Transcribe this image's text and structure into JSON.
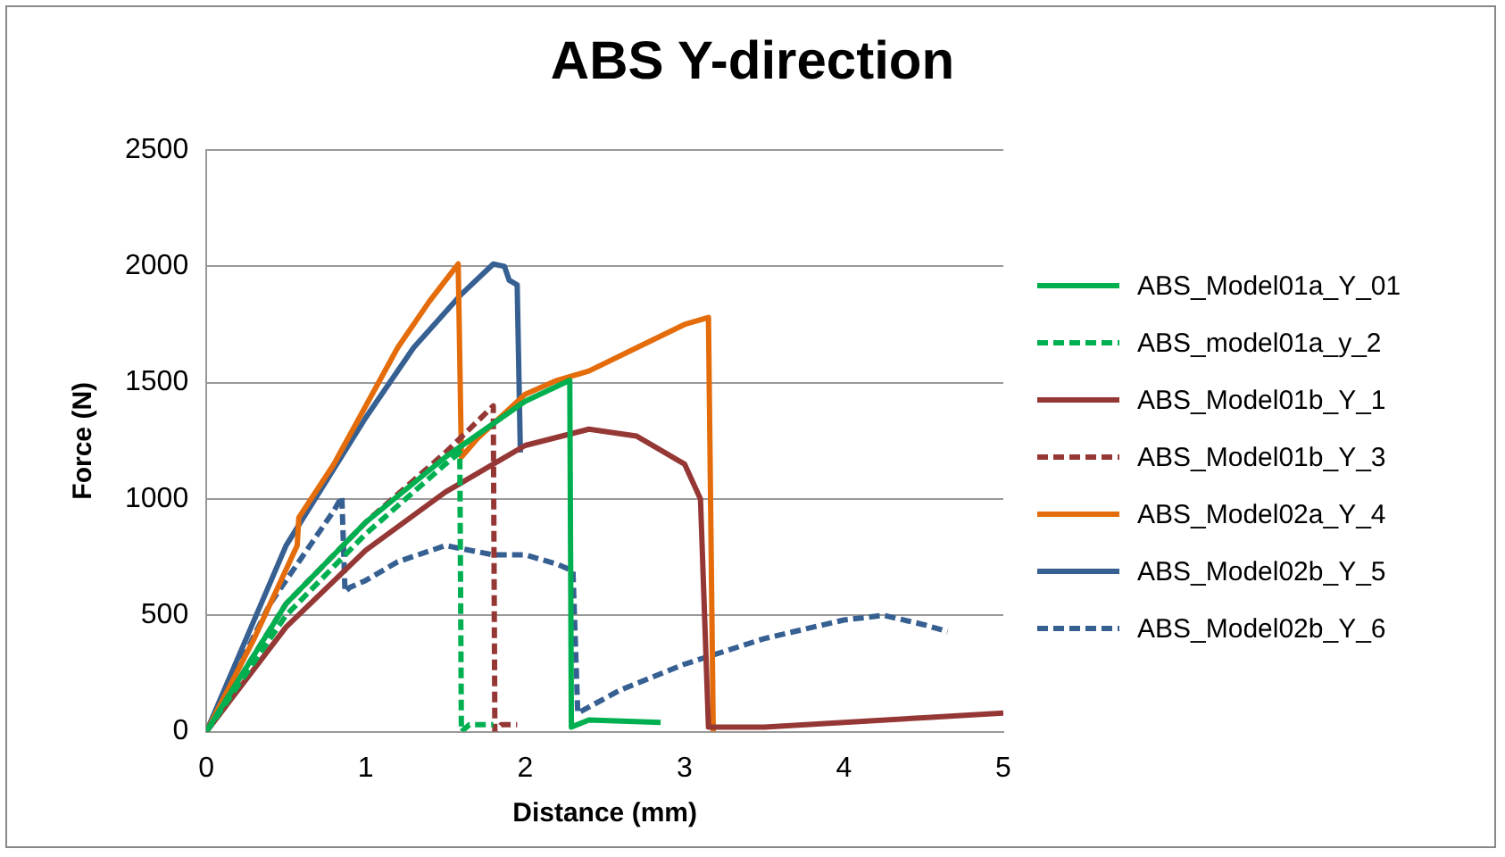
{
  "chart_data": {
    "type": "line",
    "title": "ABS Y-direction",
    "xlabel": "Distance (mm)",
    "ylabel": "Force (N)",
    "xlim": [
      0,
      5
    ],
    "xticks": [
      0,
      1,
      2,
      3,
      4,
      5
    ],
    "ylim": [
      0,
      2500
    ],
    "yticks": [
      0,
      500,
      1000,
      1500,
      2000,
      2500
    ],
    "grid": "y",
    "legend": "right",
    "marker": "none",
    "series": [
      {
        "name": "ABS_Model01a_Y_01",
        "color": "#00b050",
        "line_style": "solid",
        "x": [
          0,
          0.5,
          1,
          1.5,
          2,
          2.28,
          2.29,
          2.4,
          2.85
        ],
        "values": [
          0,
          550,
          900,
          1180,
          1420,
          1510,
          20,
          50,
          40
        ]
      },
      {
        "name": "ABS_model01a_y_2",
        "color": "#00b050",
        "line_style": "dashed",
        "x": [
          0,
          0.5,
          1,
          1.5,
          1.59,
          1.6,
          1.65,
          1.8
        ],
        "values": [
          0,
          500,
          850,
          1150,
          1200,
          0,
          30,
          30
        ]
      },
      {
        "name": "ABS_Model01b_Y_1",
        "color": "#953735",
        "line_style": "solid",
        "x": [
          0,
          0.5,
          1,
          1.5,
          2,
          2.4,
          2.7,
          3,
          3.1,
          3.15,
          3.5,
          4,
          4.5,
          5
        ],
        "values": [
          0,
          450,
          780,
          1030,
          1230,
          1300,
          1270,
          1150,
          1000,
          20,
          20,
          40,
          60,
          80
        ]
      },
      {
        "name": "ABS_Model01b_Y_3",
        "color": "#953735",
        "line_style": "dashed",
        "x": [
          0,
          0.5,
          1,
          1.5,
          1.8,
          1.81,
          1.85,
          1.95
        ],
        "values": [
          0,
          550,
          900,
          1200,
          1400,
          0,
          30,
          30
        ]
      },
      {
        "name": "ABS_Model02a_Y_4",
        "color": "#e46c0a",
        "line_style": "solid",
        "x": [
          0,
          0.3,
          0.57,
          0.58,
          0.8,
          1,
          1.2,
          1.4,
          1.58,
          1.6,
          1.7,
          2,
          2.2,
          2.4,
          2.7,
          3,
          3.15,
          3.18
        ],
        "values": [
          0,
          400,
          800,
          920,
          1150,
          1400,
          1650,
          1850,
          2010,
          1180,
          1260,
          1450,
          1510,
          1550,
          1650,
          1750,
          1780,
          0
        ]
      },
      {
        "name": "ABS_Model02b_Y_5",
        "color": "#376092",
        "line_style": "solid",
        "x": [
          0,
          0.5,
          1,
          1.3,
          1.6,
          1.8,
          1.87,
          1.9,
          1.95,
          1.97
        ],
        "values": [
          0,
          800,
          1350,
          1650,
          1880,
          2010,
          2000,
          1940,
          1920,
          1200
        ]
      },
      {
        "name": "ABS_Model02b_Y_6",
        "color": "#376092",
        "line_style": "dashed",
        "x": [
          0,
          0.4,
          0.7,
          0.8,
          0.85,
          0.87,
          0.9,
          1,
          1.2,
          1.5,
          1.8,
          2,
          2.2,
          2.3,
          2.33,
          2.6,
          3,
          3.5,
          4,
          4.25,
          4.5,
          4.65
        ],
        "values": [
          0,
          550,
          850,
          950,
          1010,
          600,
          620,
          650,
          730,
          800,
          760,
          760,
          720,
          690,
          80,
          180,
          290,
          400,
          480,
          500,
          460,
          430
        ]
      }
    ]
  }
}
